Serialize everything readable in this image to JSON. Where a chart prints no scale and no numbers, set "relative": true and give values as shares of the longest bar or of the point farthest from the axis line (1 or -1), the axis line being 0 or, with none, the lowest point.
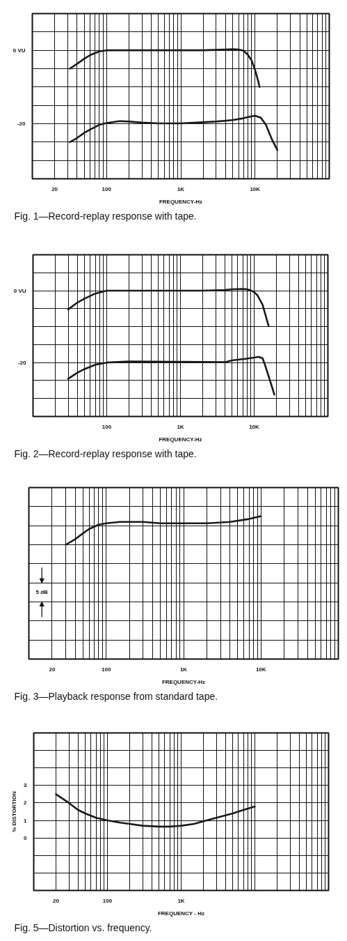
{
  "chart_data": [
    {
      "type": "line",
      "title": "Fig. 1—Record-replay response with tape.",
      "xlabel": "FREQUENCY-Hz",
      "log": "x",
      "xlim": [
        10,
        100000
      ],
      "xticks": [
        {
          "value": 20,
          "label": "20"
        },
        {
          "value": 30,
          "label": null
        },
        {
          "value": 40,
          "label": null
        },
        {
          "value": 50,
          "label": null
        },
        {
          "value": 60,
          "label": null
        },
        {
          "value": 70,
          "label": null
        },
        {
          "value": 80,
          "label": null
        },
        {
          "value": 90,
          "label": null
        },
        {
          "value": 100,
          "label": "100"
        },
        {
          "value": 200,
          "label": null
        },
        {
          "value": 300,
          "label": null
        },
        {
          "value": 400,
          "label": null
        },
        {
          "value": 500,
          "label": null
        },
        {
          "value": 600,
          "label": null
        },
        {
          "value": 700,
          "label": null
        },
        {
          "value": 800,
          "label": null
        },
        {
          "value": 900,
          "label": null
        },
        {
          "value": 1000,
          "label": "1K"
        },
        {
          "value": 2000,
          "label": null
        },
        {
          "value": 3000,
          "label": null
        },
        {
          "value": 4000,
          "label": null
        },
        {
          "value": 5000,
          "label": null
        },
        {
          "value": 6000,
          "label": null
        },
        {
          "value": 7000,
          "label": null
        },
        {
          "value": 8000,
          "label": null
        },
        {
          "value": 9000,
          "label": null
        },
        {
          "value": 10000,
          "label": "10K"
        },
        {
          "value": 20000,
          "label": null
        },
        {
          "value": 30000,
          "label": null
        },
        {
          "value": 40000,
          "label": null
        },
        {
          "value": 50000,
          "label": null
        },
        {
          "value": 60000,
          "label": null
        },
        {
          "value": 70000,
          "label": null
        },
        {
          "value": 80000,
          "label": null
        },
        {
          "value": 90000,
          "label": null
        }
      ],
      "ylim": [
        -35,
        10
      ],
      "yticks": [
        {
          "value": 5,
          "label": null
        },
        {
          "value": 0,
          "label": "0 VU"
        },
        {
          "value": -5,
          "label": null
        },
        {
          "value": -10,
          "label": null
        },
        {
          "value": -15,
          "label": null
        },
        -20,
        {
          "value": -25,
          "label": null
        },
        {
          "value": -30,
          "label": null
        }
      ],
      "grid": true,
      "line_style": "solid",
      "series": [
        {
          "color": "#1a1a1a",
          "x": [
            32,
            40,
            50,
            60,
            80,
            100,
            200,
            500,
            1000,
            2000,
            4000,
            5000,
            6000,
            7000,
            8000,
            9000,
            10000,
            11000,
            11500
          ],
          "values": [
            -5,
            -3.7,
            -2.3,
            -1.3,
            -0.3,
            0,
            0,
            0,
            0,
            0,
            0.2,
            0.3,
            0.2,
            -0.1,
            -1.2,
            -2.8,
            -5.3,
            -8.3,
            -10
          ]
        },
        {
          "color": "#1a1a1a",
          "x": [
            32,
            40,
            50,
            60,
            80,
            100,
            150,
            200,
            300,
            500,
            1000,
            2000,
            3000,
            5000,
            7000,
            8000,
            10000,
            12000,
            14000,
            17000,
            20000
          ],
          "values": [
            -25,
            -23.9,
            -22.5,
            -21.6,
            -20.3,
            -19.8,
            -19.3,
            -19.4,
            -19.7,
            -19.9,
            -19.9,
            -19.6,
            -19.4,
            -19,
            -18.5,
            -18.2,
            -17.8,
            -18.4,
            -20.3,
            -24.4,
            -27.2
          ]
        }
      ]
    },
    {
      "type": "line",
      "title": "Fig. 2—Record-replay response with tape.",
      "xlabel": "FREQUENCY-Hz",
      "log": "x",
      "xlim": [
        10,
        100000
      ],
      "xticks": [
        {
          "value": 20,
          "label": null
        },
        {
          "value": 30,
          "label": null
        },
        {
          "value": 40,
          "label": null
        },
        {
          "value": 50,
          "label": null
        },
        {
          "value": 60,
          "label": null
        },
        {
          "value": 70,
          "label": null
        },
        {
          "value": 80,
          "label": null
        },
        {
          "value": 90,
          "label": null
        },
        {
          "value": 100,
          "label": "100"
        },
        {
          "value": 200,
          "label": null
        },
        {
          "value": 300,
          "label": null
        },
        {
          "value": 400,
          "label": null
        },
        {
          "value": 500,
          "label": null
        },
        {
          "value": 600,
          "label": null
        },
        {
          "value": 700,
          "label": null
        },
        {
          "value": 800,
          "label": null
        },
        {
          "value": 900,
          "label": null
        },
        {
          "value": 1000,
          "label": "1K"
        },
        {
          "value": 2000,
          "label": null
        },
        {
          "value": 3000,
          "label": null
        },
        {
          "value": 4000,
          "label": null
        },
        {
          "value": 5000,
          "label": null
        },
        {
          "value": 6000,
          "label": null
        },
        {
          "value": 7000,
          "label": null
        },
        {
          "value": 8000,
          "label": null
        },
        {
          "value": 9000,
          "label": null
        },
        {
          "value": 10000,
          "label": "10K"
        },
        {
          "value": 20000,
          "label": null
        },
        {
          "value": 30000,
          "label": null
        },
        {
          "value": 40000,
          "label": null
        },
        {
          "value": 50000,
          "label": null
        },
        {
          "value": 60000,
          "label": null
        },
        {
          "value": 70000,
          "label": null
        },
        {
          "value": 80000,
          "label": null
        },
        {
          "value": 90000,
          "label": null
        }
      ],
      "ylim": [
        -35,
        10
      ],
      "yticks": [
        {
          "value": 5,
          "label": null
        },
        {
          "value": 0,
          "label": "0 VU"
        },
        {
          "value": -5,
          "label": null
        },
        {
          "value": -10,
          "label": null
        },
        {
          "value": -15,
          "label": null
        },
        -20,
        {
          "value": -25,
          "label": null
        },
        {
          "value": -30,
          "label": null
        }
      ],
      "grid": true,
      "line_style": "solid",
      "series": [
        {
          "color": "#1a1a1a",
          "x": [
            30,
            40,
            50,
            70,
            100,
            200,
            1000,
            2000,
            4000,
            5000,
            7000,
            8000,
            9000,
            10000,
            11000,
            12000,
            13000,
            14000,
            15700
          ],
          "values": [
            -5.2,
            -3.3,
            -2.2,
            -0.8,
            0,
            0,
            0,
            0,
            0.2,
            0.4,
            0.5,
            0.4,
            0.1,
            -0.4,
            -1.2,
            -2.6,
            -3.9,
            -6.2,
            -9.8
          ]
        },
        {
          "color": "#1a1a1a",
          "x": [
            30,
            40,
            50,
            70,
            100,
            200,
            1000,
            4000,
            5000,
            8000,
            11500,
            13000,
            14000,
            16000,
            18800
          ],
          "values": [
            -24.5,
            -22.8,
            -21.8,
            -20.6,
            -20,
            -19.7,
            -19.8,
            -19.9,
            -19.4,
            -18.9,
            -18.4,
            -18.8,
            -20.6,
            -24.3,
            -28.9
          ]
        }
      ]
    },
    {
      "type": "line",
      "title": "Fig. 3—Playback response from standard tape.",
      "xlabel": "FREQUENCY-Hz",
      "log": "x",
      "xlim": [
        10,
        100000
      ],
      "relative": true,
      "xticks": [
        {
          "value": 20,
          "label": "20"
        },
        {
          "value": 30,
          "label": null
        },
        {
          "value": 40,
          "label": null
        },
        {
          "value": 50,
          "label": null
        },
        {
          "value": 60,
          "label": null
        },
        {
          "value": 70,
          "label": null
        },
        {
          "value": 80,
          "label": null
        },
        {
          "value": 90,
          "label": null
        },
        {
          "value": 100,
          "label": "100"
        },
        {
          "value": 200,
          "label": null
        },
        {
          "value": 300,
          "label": null
        },
        {
          "value": 400,
          "label": null
        },
        {
          "value": 500,
          "label": null
        },
        {
          "value": 600,
          "label": null
        },
        {
          "value": 700,
          "label": null
        },
        {
          "value": 800,
          "label": null
        },
        {
          "value": 900,
          "label": null
        },
        {
          "value": 1000,
          "label": "1K"
        },
        {
          "value": 2000,
          "label": null
        },
        {
          "value": 3000,
          "label": null
        },
        {
          "value": 4000,
          "label": null
        },
        {
          "value": 5000,
          "label": null
        },
        {
          "value": 6000,
          "label": null
        },
        {
          "value": 7000,
          "label": null
        },
        {
          "value": 8000,
          "label": null
        },
        {
          "value": 9000,
          "label": null
        },
        {
          "value": 10000,
          "label": "10K"
        },
        {
          "value": 20000,
          "label": null
        },
        {
          "value": 30000,
          "label": null
        },
        {
          "value": 40000,
          "label": null
        },
        {
          "value": 50000,
          "label": null
        },
        {
          "value": 60000,
          "label": null
        },
        {
          "value": 70000,
          "label": null
        },
        {
          "value": 80000,
          "label": null
        },
        {
          "value": 90000,
          "label": null
        }
      ],
      "grid": true,
      "line_style": "solid",
      "annotations": [
        "5 dB"
      ],
      "series": [
        {
          "color": "#1a1a1a",
          "x": [
            30,
            40,
            50,
            60,
            80,
            100,
            150,
            200,
            300,
            500,
            1000,
            2000,
            4000,
            7000,
            10000
          ],
          "values": [
            0.8,
            0.84,
            0.88,
            0.91,
            0.94,
            0.95,
            0.96,
            0.96,
            0.96,
            0.95,
            0.95,
            0.95,
            0.96,
            0.98,
            1
          ]
        }
      ]
    },
    {
      "type": "line",
      "title": "Fig. 5—Distortion vs. frequency.",
      "xlabel": "FREQUENCY - Hz",
      "ylabel": "% DISTORTION",
      "log": "x",
      "xlim": [
        10,
        100000
      ],
      "xticks": [
        {
          "value": 20,
          "label": "20"
        },
        {
          "value": 30,
          "label": null
        },
        {
          "value": 40,
          "label": null
        },
        {
          "value": 50,
          "label": null
        },
        {
          "value": 60,
          "label": null
        },
        {
          "value": 70,
          "label": null
        },
        {
          "value": 80,
          "label": null
        },
        {
          "value": 90,
          "label": null
        },
        {
          "value": 100,
          "label": "100"
        },
        {
          "value": 200,
          "label": null
        },
        {
          "value": 300,
          "label": null
        },
        {
          "value": 400,
          "label": null
        },
        {
          "value": 500,
          "label": null
        },
        {
          "value": 600,
          "label": null
        },
        {
          "value": 700,
          "label": null
        },
        {
          "value": 800,
          "label": null
        },
        {
          "value": 900,
          "label": null
        },
        {
          "value": 1000,
          "label": "1K"
        },
        {
          "value": 2000,
          "label": null
        },
        {
          "value": 3000,
          "label": null
        },
        {
          "value": 4000,
          "label": null
        },
        {
          "value": 5000,
          "label": null
        },
        {
          "value": 6000,
          "label": null
        },
        {
          "value": 7000,
          "label": null
        },
        {
          "value": 8000,
          "label": null
        },
        {
          "value": 9000,
          "label": null
        },
        {
          "value": 10000,
          "label": null
        },
        {
          "value": 20000,
          "label": null
        },
        {
          "value": 30000,
          "label": null
        },
        {
          "value": 40000,
          "label": null
        },
        {
          "value": 50000,
          "label": null
        },
        {
          "value": 60000,
          "label": null
        },
        {
          "value": 70000,
          "label": null
        },
        {
          "value": 80000,
          "label": null
        },
        {
          "value": 90000,
          "label": null
        }
      ],
      "ylim": [
        -3,
        6
      ],
      "yticks": [
        {
          "value": -2,
          "label": null
        },
        {
          "value": -1,
          "label": null
        },
        0,
        1,
        2,
        3,
        {
          "value": 4,
          "label": null
        },
        {
          "value": 5,
          "label": null
        }
      ],
      "grid": true,
      "line_style": "solid",
      "series": [
        {
          "color": "#1a1a1a",
          "x": [
            20,
            30,
            40,
            50,
            70,
            100,
            150,
            200,
            300,
            500,
            700,
            1000,
            1500,
            2000,
            3000,
            5000,
            7000,
            10000
          ],
          "values": [
            2.5,
            2,
            1.6,
            1.4,
            1.15,
            1,
            0.87,
            0.8,
            0.7,
            0.65,
            0.65,
            0.7,
            0.8,
            0.95,
            1.15,
            1.4,
            1.6,
            1.8
          ]
        }
      ]
    }
  ]
}
